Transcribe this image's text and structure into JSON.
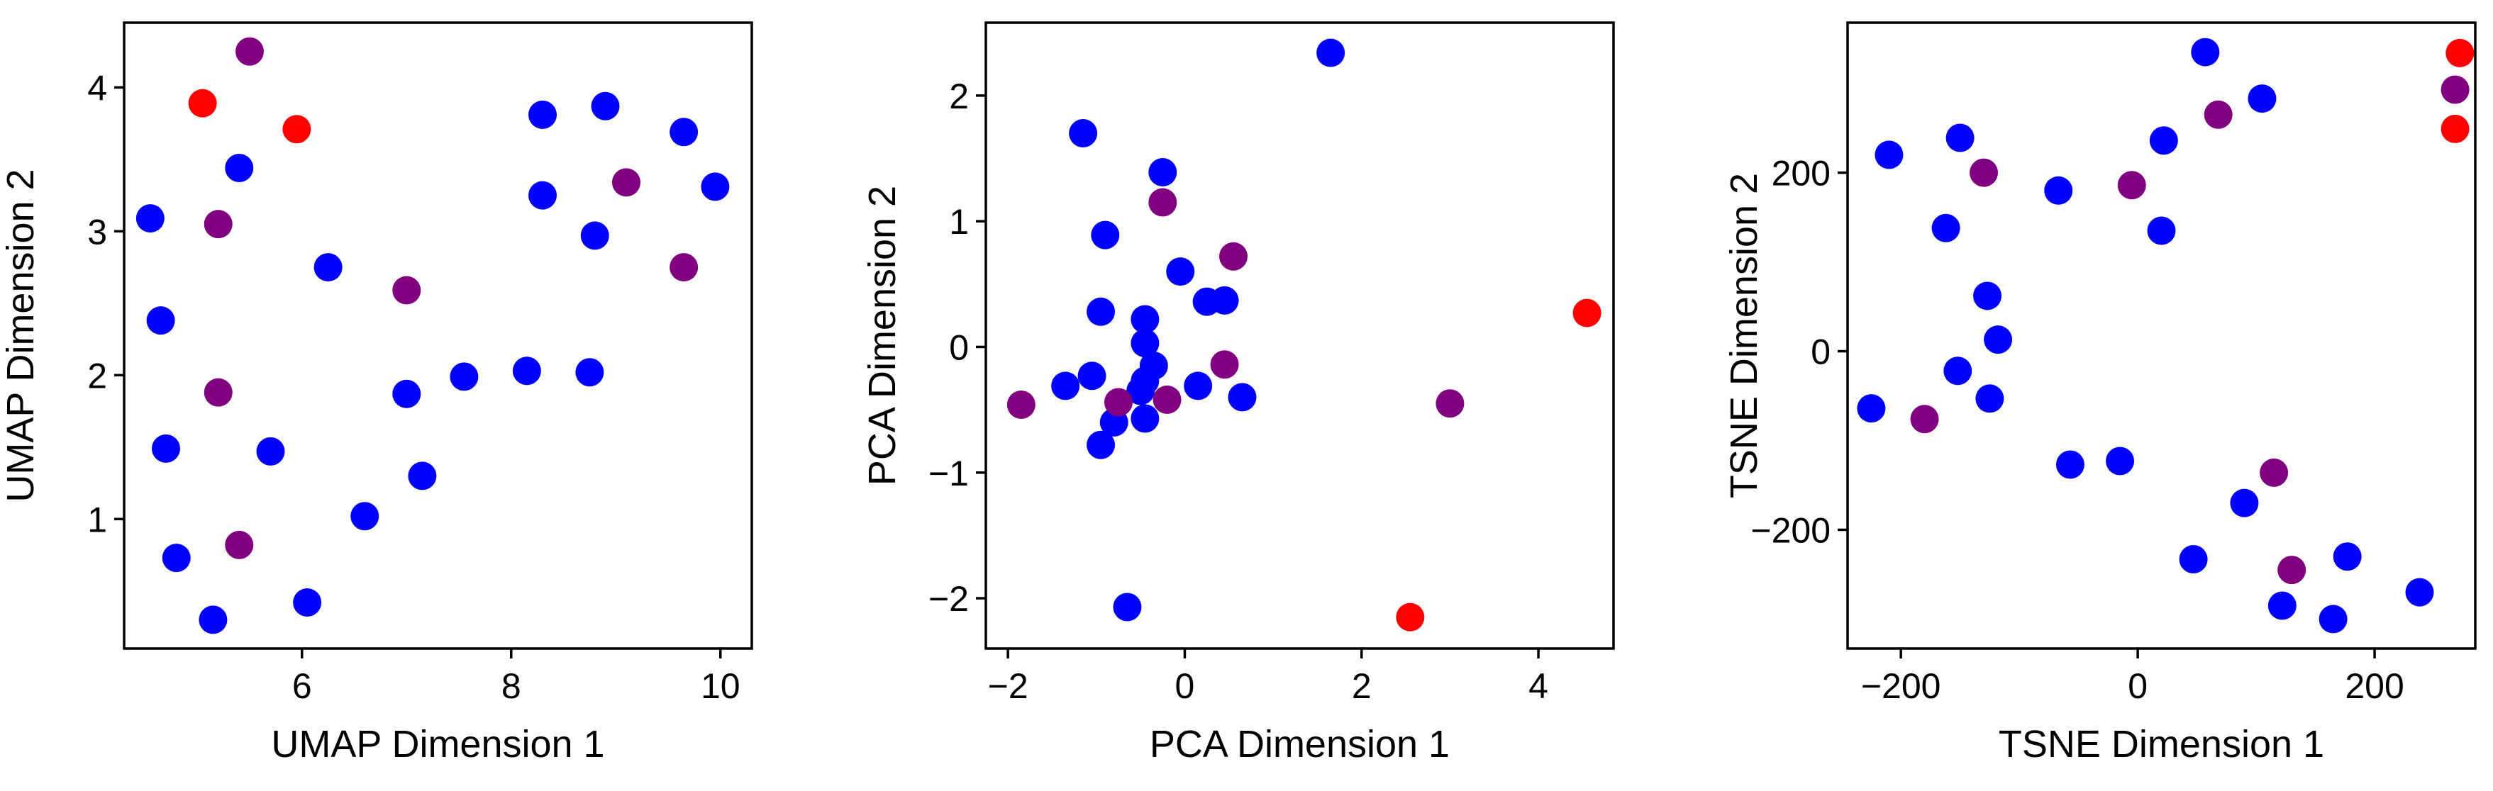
{
  "colors": {
    "blue": "#0000ff",
    "purple": "#800080",
    "red": "#ff0000"
  },
  "chart_data": [
    {
      "type": "scatter",
      "xlabel": "UMAP Dimension 1",
      "ylabel": "UMAP Dimension 2",
      "xlim": [
        4.3,
        10.3
      ],
      "ylim": [
        0.1,
        4.45
      ],
      "xticks": [
        6,
        8,
        10
      ],
      "yticks": [
        1,
        2,
        3,
        4
      ],
      "series": [
        {
          "color": "#0000ff",
          "points": [
            [
              4.55,
              3.09
            ],
            [
              4.65,
              2.38
            ],
            [
              4.7,
              1.49
            ],
            [
              4.8,
              0.73
            ],
            [
              5.15,
              0.3
            ],
            [
              5.4,
              3.44
            ],
            [
              5.7,
              1.47
            ],
            [
              6.05,
              0.42
            ],
            [
              6.25,
              2.75
            ],
            [
              6.6,
              1.02
            ],
            [
              7.0,
              1.87
            ],
            [
              7.15,
              1.3
            ],
            [
              7.55,
              1.99
            ],
            [
              8.15,
              2.03
            ],
            [
              8.3,
              3.81
            ],
            [
              8.3,
              3.25
            ],
            [
              8.75,
              2.02
            ],
            [
              8.8,
              2.97
            ],
            [
              8.9,
              3.87
            ],
            [
              9.65,
              3.69
            ],
            [
              9.95,
              3.31
            ]
          ]
        },
        {
          "color": "#800080",
          "points": [
            [
              5.5,
              4.25
            ],
            [
              5.2,
              3.05
            ],
            [
              5.2,
              1.88
            ],
            [
              5.4,
              0.82
            ],
            [
              7.0,
              2.59
            ],
            [
              9.1,
              3.34
            ],
            [
              9.65,
              2.75
            ]
          ]
        },
        {
          "color": "#ff0000",
          "points": [
            [
              5.05,
              3.89
            ],
            [
              5.95,
              3.71
            ]
          ]
        }
      ]
    },
    {
      "type": "scatter",
      "xlabel": "PCA Dimension 1",
      "ylabel": "PCA Dimension 2",
      "xlim": [
        -2.25,
        4.85
      ],
      "ylim": [
        -2.4,
        2.58
      ],
      "xticks": [
        -2,
        0,
        2,
        4
      ],
      "yticks": [
        -2,
        -1,
        0,
        1,
        2
      ],
      "series": [
        {
          "color": "#0000ff",
          "points": [
            [
              1.65,
              2.34
            ],
            [
              -1.15,
              1.7
            ],
            [
              -0.25,
              1.39
            ],
            [
              -0.9,
              0.89
            ],
            [
              -0.05,
              0.6
            ],
            [
              0.25,
              0.36
            ],
            [
              0.45,
              0.37
            ],
            [
              -0.95,
              0.28
            ],
            [
              -0.45,
              0.22
            ],
            [
              -0.45,
              0.03
            ],
            [
              -0.35,
              -0.15
            ],
            [
              -1.05,
              -0.23
            ],
            [
              -1.35,
              -0.31
            ],
            [
              -0.45,
              -0.27
            ],
            [
              -0.5,
              -0.35
            ],
            [
              0.15,
              -0.31
            ],
            [
              0.65,
              -0.4
            ],
            [
              -0.8,
              -0.6
            ],
            [
              -0.45,
              -0.57
            ],
            [
              -0.95,
              -0.78
            ],
            [
              -0.65,
              -2.07
            ]
          ]
        },
        {
          "color": "#800080",
          "points": [
            [
              -0.25,
              1.15
            ],
            [
              0.55,
              0.72
            ],
            [
              0.45,
              -0.14
            ],
            [
              -0.75,
              -0.44
            ],
            [
              -0.2,
              -0.42
            ],
            [
              -1.85,
              -0.46
            ],
            [
              3.0,
              -0.45
            ]
          ]
        },
        {
          "color": "#ff0000",
          "points": [
            [
              4.55,
              0.27
            ],
            [
              2.55,
              -2.15
            ]
          ]
        }
      ]
    },
    {
      "type": "scatter",
      "xlabel": "TSNE Dimension 1",
      "ylabel": "TSNE Dimension 2",
      "xlim": [
        -245,
        285
      ],
      "ylim": [
        -333,
        368
      ],
      "xticks": [
        -200,
        0,
        200
      ],
      "yticks": [
        -200,
        0,
        200
      ],
      "series": [
        {
          "color": "#0000ff",
          "points": [
            [
              57,
              335
            ],
            [
              105,
              283
            ],
            [
              -150,
              239
            ],
            [
              -210,
              220
            ],
            [
              22,
              236
            ],
            [
              -67,
              180
            ],
            [
              -162,
              138
            ],
            [
              20,
              135
            ],
            [
              -127,
              62
            ],
            [
              -118,
              13
            ],
            [
              -152,
              -22
            ],
            [
              -125,
              -53
            ],
            [
              -225,
              -64
            ],
            [
              -57,
              -127
            ],
            [
              -15,
              -123
            ],
            [
              90,
              -170
            ],
            [
              47,
              -233
            ],
            [
              177,
              -230
            ],
            [
              238,
              -270
            ],
            [
              122,
              -285
            ],
            [
              165,
              -300
            ]
          ]
        },
        {
          "color": "#800080",
          "points": [
            [
              -130,
              200
            ],
            [
              -5,
              186
            ],
            [
              68,
              265
            ],
            [
              268,
              293
            ],
            [
              -180,
              -76
            ],
            [
              115,
              -136
            ],
            [
              130,
              -245
            ]
          ]
        },
        {
          "color": "#ff0000",
          "points": [
            [
              272,
              334
            ],
            [
              268,
              249
            ]
          ]
        }
      ]
    }
  ]
}
